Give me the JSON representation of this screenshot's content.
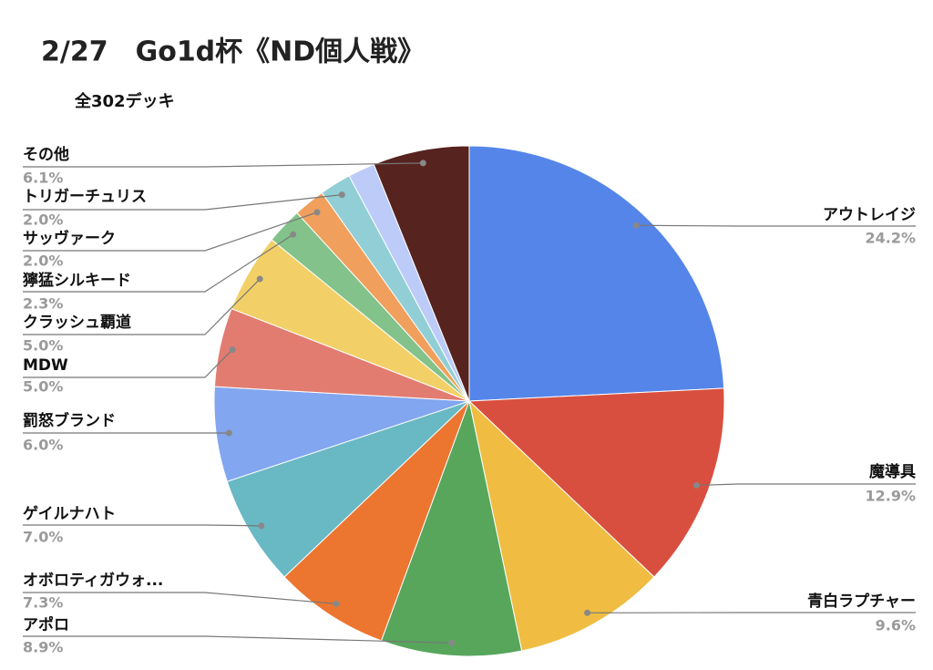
{
  "chart_data": {
    "type": "pie",
    "title": "2/27　Go1d杯《ND個人戦》",
    "subtitle": "全302デッキ",
    "categories": [
      "アウトレイジ",
      "魔導具",
      "青白ラプチャー",
      "アポロ",
      "オボロティガウォ...",
      "ゲイルナハト",
      "罰怒ブランド",
      "MDW",
      "クラッシュ覇道",
      "獰猛シルキード",
      "サッヴァーク",
      "トリガーチュリス",
      null,
      "その他"
    ],
    "values": [
      24.2,
      12.9,
      9.6,
      8.9,
      7.3,
      7.0,
      6.0,
      5.0,
      5.0,
      2.3,
      2.0,
      2.0,
      1.7,
      6.1
    ],
    "value_labels": [
      "24.2%",
      "12.9%",
      "9.6%",
      "8.9%",
      "7.3%",
      "7.0%",
      "6.0%",
      "5.0%",
      "5.0%",
      "2.3%",
      "2.0%",
      "2.0%",
      null,
      "6.1%"
    ],
    "colors": [
      "#5585e8",
      "#d94f3f",
      "#f0bd42",
      "#57a65c",
      "#ec7630",
      "#69b9c4",
      "#82a6ef",
      "#e27c71",
      "#f3d067",
      "#83c28a",
      "#f0a05c",
      "#92ced5",
      "#bccbf7",
      "#56231f"
    ]
  }
}
